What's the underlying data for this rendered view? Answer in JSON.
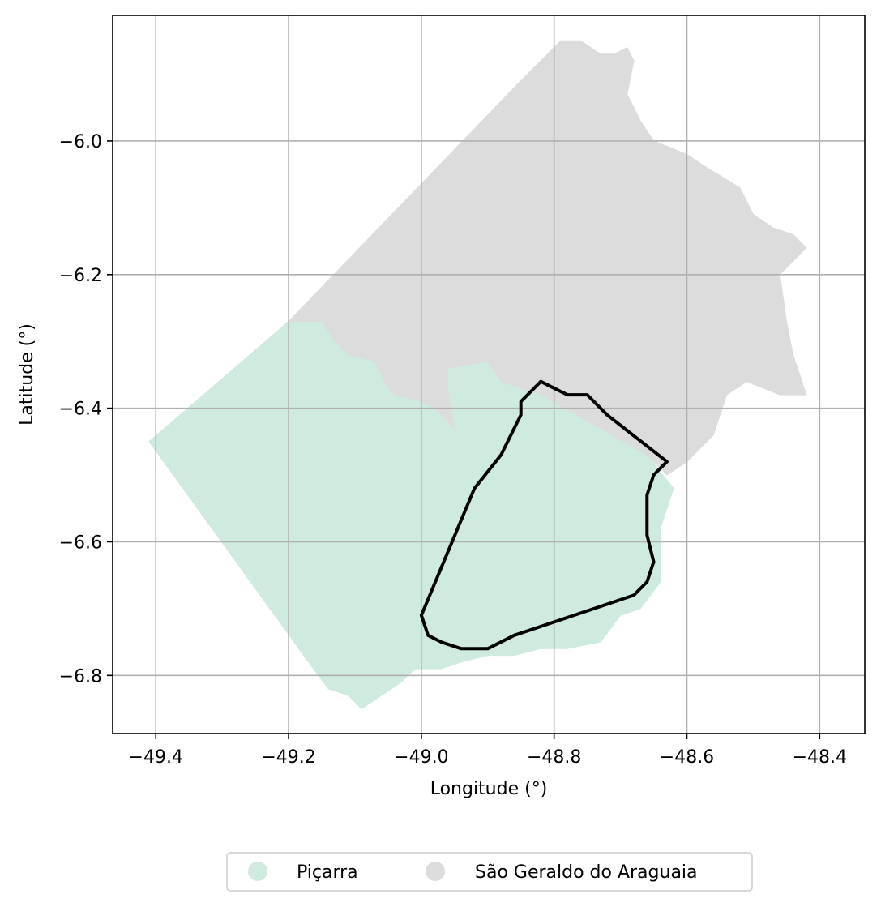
{
  "chart_data": {
    "type": "map",
    "xlabel": "Longitude (°)",
    "ylabel": "Latitude (°)",
    "xlim": [
      -49.465,
      -48.332
    ],
    "ylim": [
      -6.887,
      -5.812
    ],
    "grid": true,
    "legend_placement": "bottom-center",
    "xticks": [
      "−49.4",
      "−49.2",
      "−49.0",
      "−48.8",
      "−48.6",
      "−48.4"
    ],
    "yticks": [
      "−6.0",
      "−6.2",
      "−6.4",
      "−6.6",
      "−6.8"
    ],
    "xtick_values": [
      -49.4,
      -49.2,
      -49.0,
      -48.8,
      -48.6,
      -48.4
    ],
    "ytick_values": [
      -6.0,
      -6.2,
      -6.4,
      -6.6,
      -6.8
    ],
    "regions": [
      {
        "name": "Piçarra",
        "color": "#cfeadf",
        "coords": [
          [
            -49.41,
            -6.45
          ],
          [
            -49.2,
            -6.27
          ],
          [
            -49.15,
            -6.27
          ],
          [
            -49.13,
            -6.3
          ],
          [
            -49.11,
            -6.32
          ],
          [
            -49.07,
            -6.33
          ],
          [
            -49.05,
            -6.37
          ],
          [
            -49.04,
            -6.38
          ],
          [
            -49.0,
            -6.39
          ],
          [
            -48.98,
            -6.4
          ],
          [
            -48.95,
            -6.43
          ],
          [
            -48.96,
            -6.38
          ],
          [
            -48.96,
            -6.34
          ],
          [
            -48.9,
            -6.33
          ],
          [
            -48.88,
            -6.36
          ],
          [
            -48.82,
            -6.38
          ],
          [
            -48.66,
            -6.47
          ],
          [
            -48.62,
            -6.52
          ],
          [
            -48.64,
            -6.58
          ],
          [
            -48.64,
            -6.66
          ],
          [
            -48.67,
            -6.7
          ],
          [
            -48.7,
            -6.71
          ],
          [
            -48.73,
            -6.75
          ],
          [
            -48.78,
            -6.76
          ],
          [
            -48.82,
            -6.76
          ],
          [
            -48.86,
            -6.77
          ],
          [
            -48.9,
            -6.77
          ],
          [
            -48.94,
            -6.78
          ],
          [
            -48.97,
            -6.79
          ],
          [
            -49.01,
            -6.79
          ],
          [
            -49.03,
            -6.81
          ],
          [
            -49.06,
            -6.83
          ],
          [
            -49.09,
            -6.85
          ],
          [
            -49.11,
            -6.83
          ],
          [
            -49.14,
            -6.82
          ],
          [
            -49.17,
            -6.78
          ],
          [
            -49.41,
            -6.45
          ]
        ]
      },
      {
        "name": "São Geraldo do Araguaia",
        "color": "#dcdcdc",
        "coords": [
          [
            -49.2,
            -6.27
          ],
          [
            -48.86,
            -5.92
          ],
          [
            -48.79,
            -5.85
          ],
          [
            -48.76,
            -5.85
          ],
          [
            -48.73,
            -5.87
          ],
          [
            -48.71,
            -5.87
          ],
          [
            -48.69,
            -5.86
          ],
          [
            -48.68,
            -5.88
          ],
          [
            -48.69,
            -5.93
          ],
          [
            -48.67,
            -5.97
          ],
          [
            -48.65,
            -6.0
          ],
          [
            -48.6,
            -6.02
          ],
          [
            -48.57,
            -6.04
          ],
          [
            -48.52,
            -6.07
          ],
          [
            -48.5,
            -6.11
          ],
          [
            -48.47,
            -6.13
          ],
          [
            -48.44,
            -6.14
          ],
          [
            -48.42,
            -6.16
          ],
          [
            -48.46,
            -6.2
          ],
          [
            -48.45,
            -6.27
          ],
          [
            -48.44,
            -6.32
          ],
          [
            -48.43,
            -6.35
          ],
          [
            -48.42,
            -6.38
          ],
          [
            -48.46,
            -6.38
          ],
          [
            -48.51,
            -6.36
          ],
          [
            -48.54,
            -6.38
          ],
          [
            -48.56,
            -6.44
          ],
          [
            -48.6,
            -6.48
          ],
          [
            -48.63,
            -6.5
          ],
          [
            -48.66,
            -6.47
          ],
          [
            -48.82,
            -6.38
          ],
          [
            -48.88,
            -6.36
          ],
          [
            -48.9,
            -6.33
          ],
          [
            -48.96,
            -6.34
          ],
          [
            -48.96,
            -6.38
          ],
          [
            -48.95,
            -6.43
          ],
          [
            -48.98,
            -6.4
          ],
          [
            -49.0,
            -6.39
          ],
          [
            -49.04,
            -6.38
          ],
          [
            -49.05,
            -6.37
          ],
          [
            -49.07,
            -6.33
          ],
          [
            -49.11,
            -6.32
          ],
          [
            -49.13,
            -6.3
          ],
          [
            -49.15,
            -6.27
          ],
          [
            -49.2,
            -6.27
          ]
        ]
      }
    ],
    "highlight_outline": {
      "color": "#000000",
      "coords": [
        [
          -49.0,
          -6.71
        ],
        [
          -48.92,
          -6.52
        ],
        [
          -48.88,
          -6.47
        ],
        [
          -48.85,
          -6.41
        ],
        [
          -48.85,
          -6.39
        ],
        [
          -48.82,
          -6.36
        ],
        [
          -48.8,
          -6.37
        ],
        [
          -48.78,
          -6.38
        ],
        [
          -48.75,
          -6.38
        ],
        [
          -48.72,
          -6.41
        ],
        [
          -48.63,
          -6.48
        ],
        [
          -48.65,
          -6.5
        ],
        [
          -48.66,
          -6.53
        ],
        [
          -48.66,
          -6.59
        ],
        [
          -48.65,
          -6.63
        ],
        [
          -48.66,
          -6.66
        ],
        [
          -48.68,
          -6.68
        ],
        [
          -48.71,
          -6.69
        ],
        [
          -48.74,
          -6.7
        ],
        [
          -48.77,
          -6.71
        ],
        [
          -48.8,
          -6.72
        ],
        [
          -48.83,
          -6.73
        ],
        [
          -48.86,
          -6.74
        ],
        [
          -48.9,
          -6.76
        ],
        [
          -48.94,
          -6.76
        ],
        [
          -48.97,
          -6.75
        ],
        [
          -48.99,
          -6.74
        ],
        [
          -49.0,
          -6.71
        ]
      ]
    }
  }
}
